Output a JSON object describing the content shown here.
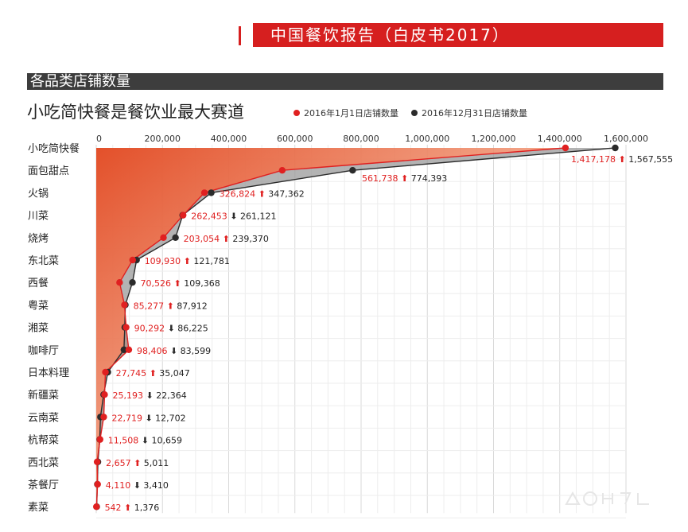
{
  "header": {
    "report_title": "中国餐饮报告（白皮书2017）",
    "section_title": "各品类店铺数量",
    "subtitle": "小吃简快餐是餐饮业最大赛道"
  },
  "colors": {
    "accent_red": "#d61f1f",
    "series_start": "#e02020",
    "series_end": "#2b2b2b",
    "gap_fill": "#9a9a9a",
    "area_gradient_from": "#e3502a",
    "area_gradient_to": "#ffffff"
  },
  "chart_data": {
    "type": "scatter",
    "orientation": "horizontal",
    "xlim": [
      0,
      1600000
    ],
    "x_ticks": [
      "0",
      "200,000",
      "400,000",
      "600,000",
      "800,000",
      "1,000,000",
      "1,200,000",
      "1,400,000",
      "1,600,000"
    ],
    "x_tick_values": [
      0,
      200000,
      400000,
      600000,
      800000,
      1000000,
      1200000,
      1400000,
      1600000
    ],
    "grid": true,
    "legend_position": "top",
    "categories": [
      "小吃简快餐",
      "面包甜点",
      "火锅",
      "川菜",
      "烧烤",
      "东北菜",
      "西餐",
      "粤菜",
      "湘菜",
      "咖啡厅",
      "日本料理",
      "新疆菜",
      "云南菜",
      "杭帮菜",
      "西北菜",
      "茶餐厅",
      "素菜"
    ],
    "series": [
      {
        "name": "2016年1月1日店铺数量",
        "values": [
          1417178,
          561738,
          326824,
          262453,
          203054,
          109930,
          70526,
          85277,
          90292,
          98406,
          27745,
          25193,
          22719,
          11508,
          2657,
          4110,
          542
        ],
        "labels": [
          "1,417,178",
          "561,738",
          "326,824",
          "262,453",
          "203,054",
          "109,930",
          "70,526",
          "85,277",
          "90,292",
          "98,406",
          "27,745",
          "25,193",
          "22,719",
          "11,508",
          "2,657",
          "4,110",
          "542"
        ]
      },
      {
        "name": "2016年12月31日店铺数量",
        "values": [
          1567555,
          774393,
          347362,
          261121,
          239370,
          121781,
          109368,
          87912,
          86225,
          83599,
          35047,
          22364,
          12702,
          10659,
          5011,
          3410,
          1376
        ],
        "labels": [
          "1,567,555",
          "774,393",
          "347,362",
          "261,121",
          "239,370",
          "121,781",
          "109,368",
          "87,912",
          "86,225",
          "83,599",
          "35,047",
          "22,364",
          "12,702",
          "10,659",
          "5,011",
          "3,410",
          "1,376"
        ]
      }
    ]
  }
}
